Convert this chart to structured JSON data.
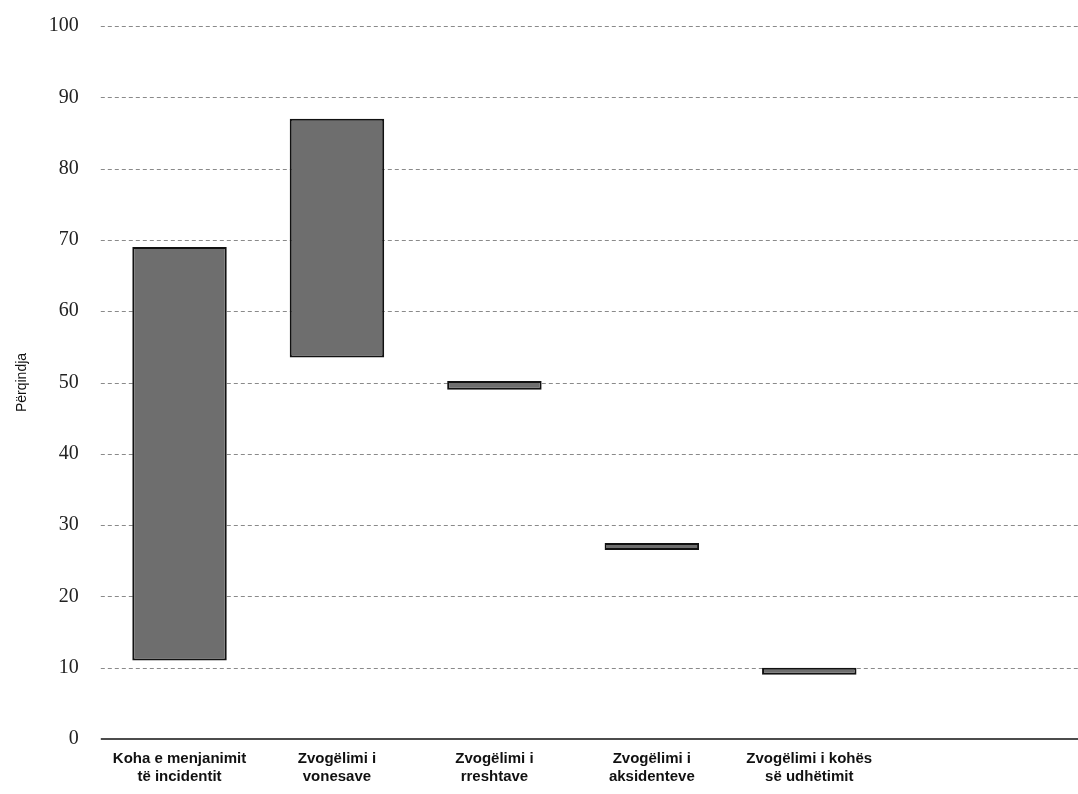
{
  "chart_data": {
    "type": "bar",
    "ylabel": "Përqindja",
    "categories": [
      "Koha e menjanimit të incidentit",
      "Zvogëlimi i vonesave",
      "Zvogëlimi i rreshtave",
      "Zvogëlimi i aksidenteve",
      "Zvogëlimi i kohës së udhëtimit"
    ],
    "values": [
      58,
      33.5,
      1.2,
      1,
      1
    ],
    "base": [
      11,
      53.5,
      49,
      26.5,
      9
    ],
    "color": "#6e6e6e",
    "ylim": [
      0,
      100
    ],
    "yticks": [
      0,
      10,
      20,
      30,
      40,
      50,
      60,
      70,
      80,
      90,
      100
    ],
    "grid": "y",
    "legend": false
  }
}
